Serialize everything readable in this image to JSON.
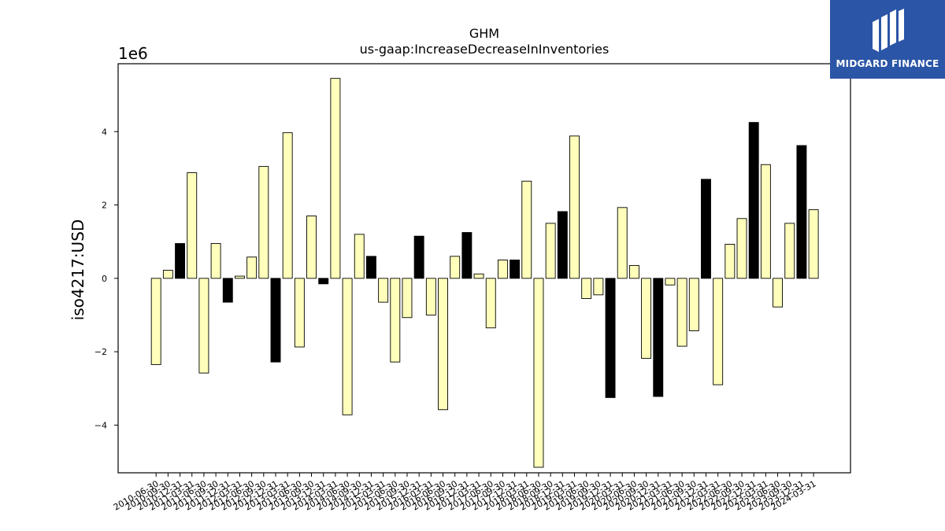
{
  "logo": {
    "text": "MIDGARD FINANCE",
    "icon": "midgard-logo-icon",
    "background": "#2b55a6"
  },
  "chart_data": {
    "type": "bar",
    "title": "GHM",
    "subtitle": "us-gaap:IncreaseDecreaseInInventories",
    "ylabel": "iso4217:USD",
    "xlabel": "",
    "y_offset_label": "1e6",
    "ylim": [
      -5.3,
      5.85
    ],
    "yticks": [
      -4,
      -2,
      0,
      2,
      4
    ],
    "bar_fill": "#ffffbb",
    "bar_fill_highlight": "#000000",
    "bar_edge": "#000000",
    "categories": [
      "2010-06-30",
      "2010-09-30",
      "2010-12-31",
      "2011-03-31",
      "2011-06-30",
      "2011-09-30",
      "2011-12-31",
      "2012-03-31",
      "2012-06-30",
      "2012-09-30",
      "2012-12-31",
      "2013-03-31",
      "2013-06-30",
      "2013-09-30",
      "2013-12-31",
      "2014-03-31",
      "2014-06-30",
      "2014-09-30",
      "2014-12-31",
      "2015-03-31",
      "2015-06-30",
      "2015-09-30",
      "2015-12-31",
      "2016-03-31",
      "2016-06-30",
      "2016-09-30",
      "2016-12-31",
      "2017-03-31",
      "2017-06-30",
      "2017-09-30",
      "2017-12-31",
      "2018-03-31",
      "2018-06-30",
      "2018-09-30",
      "2018-12-31",
      "2019-03-31",
      "2019-06-30",
      "2019-09-30",
      "2019-12-31",
      "2020-03-31",
      "2020-06-30",
      "2020-09-30",
      "2020-12-31",
      "2021-03-31",
      "2021-06-30",
      "2021-09-30",
      "2021-12-31",
      "2022-03-31",
      "2022-06-30",
      "2022-09-30",
      "2022-12-31",
      "2023-03-31",
      "2023-06-30",
      "2023-09-30",
      "2023-12-31",
      "2024-03-31"
    ],
    "values": [
      -2.35,
      0.22,
      0.95,
      2.88,
      -2.58,
      0.95,
      -0.65,
      0.06,
      0.58,
      3.05,
      -2.28,
      3.97,
      -1.87,
      1.7,
      -0.15,
      5.45,
      -3.72,
      1.2,
      0.6,
      -0.65,
      -2.28,
      -1.07,
      1.15,
      -1.0,
      -3.58,
      0.6,
      1.25,
      0.12,
      -1.35,
      0.5,
      0.5,
      2.65,
      -5.15,
      1.5,
      1.82,
      3.88,
      -0.55,
      -0.45,
      -3.25,
      1.93,
      0.35,
      -2.18,
      -3.22,
      -0.18,
      -1.85,
      -1.43,
      2.7,
      -2.9,
      0.93,
      1.63,
      4.25,
      3.1,
      -0.78,
      1.5,
      3.62,
      1.87
    ],
    "highlighted": [
      false,
      false,
      true,
      false,
      false,
      false,
      true,
      false,
      false,
      false,
      true,
      false,
      false,
      false,
      true,
      false,
      false,
      false,
      true,
      false,
      false,
      false,
      true,
      false,
      false,
      false,
      true,
      false,
      false,
      false,
      true,
      false,
      false,
      false,
      true,
      false,
      false,
      false,
      true,
      false,
      false,
      false,
      true,
      false,
      false,
      false,
      true,
      false,
      false,
      false,
      true,
      false,
      false,
      false,
      true,
      false
    ]
  }
}
